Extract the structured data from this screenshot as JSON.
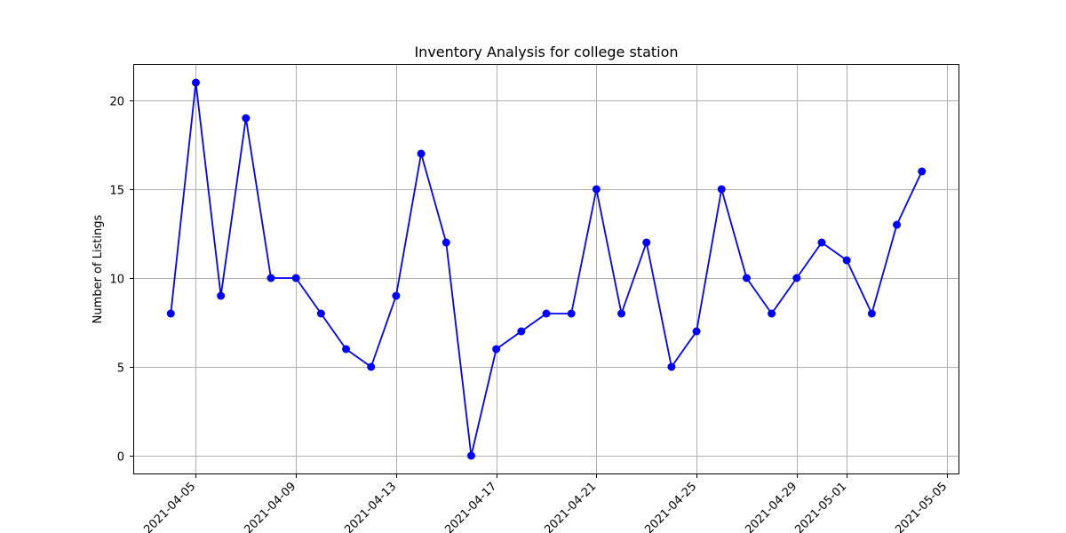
{
  "chart_data": {
    "type": "line",
    "title": "Inventory Analysis for college station",
    "xlabel": "",
    "ylabel": "Number of Listings",
    "grid": true,
    "line_color": "#0000ff",
    "marker": "circle",
    "x_ticks": [
      "2021-04-05",
      "2021-04-09",
      "2021-04-13",
      "2021-04-17",
      "2021-04-21",
      "2021-04-25",
      "2021-04-29",
      "2021-05-01",
      "2021-05-05"
    ],
    "y_ticks": [
      0,
      5,
      10,
      15,
      20
    ],
    "ylim": [
      -1.05,
      22.05
    ],
    "xlim": [
      "2021-04-02T12:00",
      "2021-05-05T12:00"
    ],
    "series": [
      {
        "x": [
          "2021-04-04",
          "2021-04-05",
          "2021-04-06",
          "2021-04-07",
          "2021-04-08",
          "2021-04-09",
          "2021-04-10",
          "2021-04-11",
          "2021-04-12",
          "2021-04-13",
          "2021-04-14",
          "2021-04-15",
          "2021-04-16",
          "2021-04-17",
          "2021-04-18",
          "2021-04-19",
          "2021-04-20",
          "2021-04-21",
          "2021-04-22",
          "2021-04-23",
          "2021-04-24",
          "2021-04-25",
          "2021-04-26",
          "2021-04-27",
          "2021-04-28",
          "2021-04-29",
          "2021-04-30",
          "2021-05-01",
          "2021-05-02",
          "2021-05-03",
          "2021-05-04"
        ],
        "values": [
          8,
          21,
          9,
          19,
          10,
          10,
          8,
          6,
          5,
          9,
          17,
          12,
          0,
          6,
          7,
          8,
          8,
          15,
          8,
          12,
          5,
          7,
          15,
          10,
          8,
          10,
          12,
          11,
          8,
          13,
          16
        ]
      }
    ]
  }
}
